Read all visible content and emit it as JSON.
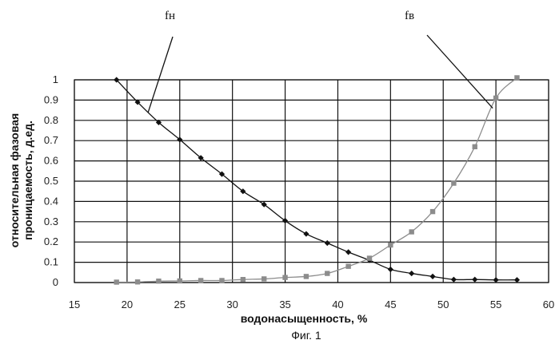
{
  "chart_data": {
    "type": "scatter",
    "xlabel": "водонасыщенность, %",
    "ylabel_line1": "относительная фазовая",
    "ylabel_line2": "проницаемость, д.ед.",
    "caption": "Фиг. 1",
    "xlim": [
      15,
      60
    ],
    "ylim": [
      0,
      1
    ],
    "x_ticks": [
      15,
      20,
      25,
      30,
      35,
      40,
      45,
      50,
      55,
      60
    ],
    "y_ticks": [
      0,
      0.1,
      0.2,
      0.3,
      0.4,
      0.5,
      0.6,
      0.7,
      0.8,
      0.9,
      1
    ],
    "grid": "horizontal and vertical",
    "series": [
      {
        "name": "fн",
        "marker": "diamond",
        "color": "#111111",
        "points": [
          [
            19,
            1.0
          ],
          [
            21,
            0.89
          ],
          [
            23,
            0.79
          ],
          [
            25,
            0.705
          ],
          [
            27,
            0.615
          ],
          [
            29,
            0.535
          ],
          [
            31,
            0.45
          ],
          [
            33,
            0.385
          ],
          [
            35,
            0.305
          ],
          [
            37,
            0.24
          ],
          [
            39,
            0.195
          ],
          [
            41,
            0.15
          ],
          [
            43,
            0.11
          ],
          [
            45,
            0.065
          ],
          [
            47,
            0.045
          ],
          [
            49,
            0.03
          ],
          [
            51,
            0.015
          ],
          [
            53,
            0.015
          ],
          [
            55,
            0.013
          ],
          [
            57,
            0.013
          ]
        ]
      },
      {
        "name": "fв",
        "marker": "square",
        "color": "#8c8c8c",
        "points": [
          [
            19,
            0.002
          ],
          [
            21,
            0.003
          ],
          [
            23,
            0.007
          ],
          [
            25,
            0.008
          ],
          [
            27,
            0.01
          ],
          [
            29,
            0.01
          ],
          [
            31,
            0.015
          ],
          [
            33,
            0.018
          ],
          [
            35,
            0.025
          ],
          [
            37,
            0.03
          ],
          [
            39,
            0.045
          ],
          [
            41,
            0.08
          ],
          [
            43,
            0.12
          ],
          [
            45,
            0.185
          ],
          [
            47,
            0.25
          ],
          [
            49,
            0.35
          ],
          [
            51,
            0.49
          ],
          [
            53,
            0.67
          ],
          [
            55,
            0.91
          ],
          [
            57,
            1.01
          ]
        ]
      }
    ]
  }
}
